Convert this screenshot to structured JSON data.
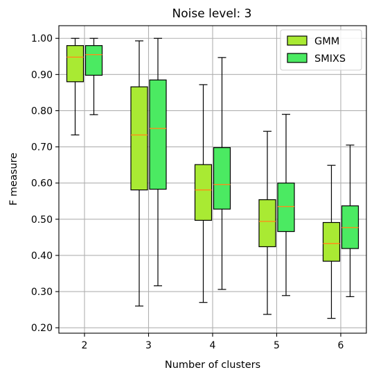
{
  "chart_data": {
    "type": "box",
    "title": "Noise level: 3",
    "xlabel": "Number of clusters",
    "ylabel": "F measure",
    "categories": [
      "2",
      "3",
      "4",
      "5",
      "6"
    ],
    "yticks": [
      "0.20",
      "0.30",
      "0.40",
      "0.50",
      "0.60",
      "0.70",
      "0.80",
      "0.90",
      "1.00"
    ],
    "ylim": [
      0.185,
      1.035
    ],
    "grid": true,
    "legend_position": "top-right",
    "series": [
      {
        "name": "GMM",
        "color": "#a9ea33",
        "boxes": [
          {
            "whislo": 0.733,
            "q1": 0.88,
            "med": 0.948,
            "q3": 0.98,
            "whishi": 1.0
          },
          {
            "whislo": 0.26,
            "q1": 0.581,
            "med": 0.733,
            "q3": 0.866,
            "whishi": 0.993
          },
          {
            "whislo": 0.27,
            "q1": 0.497,
            "med": 0.581,
            "q3": 0.651,
            "whishi": 0.872
          },
          {
            "whislo": 0.237,
            "q1": 0.424,
            "med": 0.494,
            "q3": 0.554,
            "whishi": 0.743
          },
          {
            "whislo": 0.226,
            "q1": 0.384,
            "med": 0.433,
            "q3": 0.491,
            "whishi": 0.649
          }
        ]
      },
      {
        "name": "SMIXS",
        "color": "#4bea62",
        "boxes": [
          {
            "whislo": 0.789,
            "q1": 0.898,
            "med": 0.955,
            "q3": 0.98,
            "whishi": 1.0
          },
          {
            "whislo": 0.316,
            "q1": 0.583,
            "med": 0.751,
            "q3": 0.885,
            "whishi": 1.0
          },
          {
            "whislo": 0.306,
            "q1": 0.528,
            "med": 0.596,
            "q3": 0.698,
            "whishi": 0.947
          },
          {
            "whislo": 0.289,
            "q1": 0.466,
            "med": 0.535,
            "q3": 0.6,
            "whishi": 0.79
          },
          {
            "whislo": 0.286,
            "q1": 0.419,
            "med": 0.477,
            "q3": 0.537,
            "whishi": 0.705
          }
        ]
      }
    ],
    "median_color": "#ff8c1a"
  }
}
